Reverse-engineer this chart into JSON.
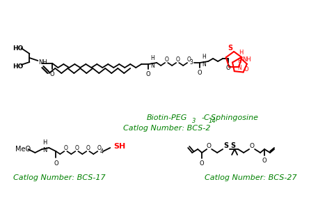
{
  "title": "",
  "background_color": "#ffffff",
  "compound1": {
    "name_line1": "Biotin-PEG",
    "name_subscript1": "3",
    "name_middle": "-C",
    "name_subscript2": "14",
    "name_end": "-Sphingosine",
    "catlog": "Catlog Number: BCS-2",
    "name_color": "#008000",
    "catlog_color": "#008000"
  },
  "compound2": {
    "catlog": "Catlog Number: BCS-17",
    "catlog_color": "#008000"
  },
  "compound3": {
    "catlog": "Catlog Number: BCS-27",
    "catlog_color": "#008000"
  },
  "sh_color": "#ff0000",
  "biotin_color": "#ff0000",
  "black": "#000000",
  "figsize": [
    4.81,
    3.17
  ],
  "dpi": 100
}
